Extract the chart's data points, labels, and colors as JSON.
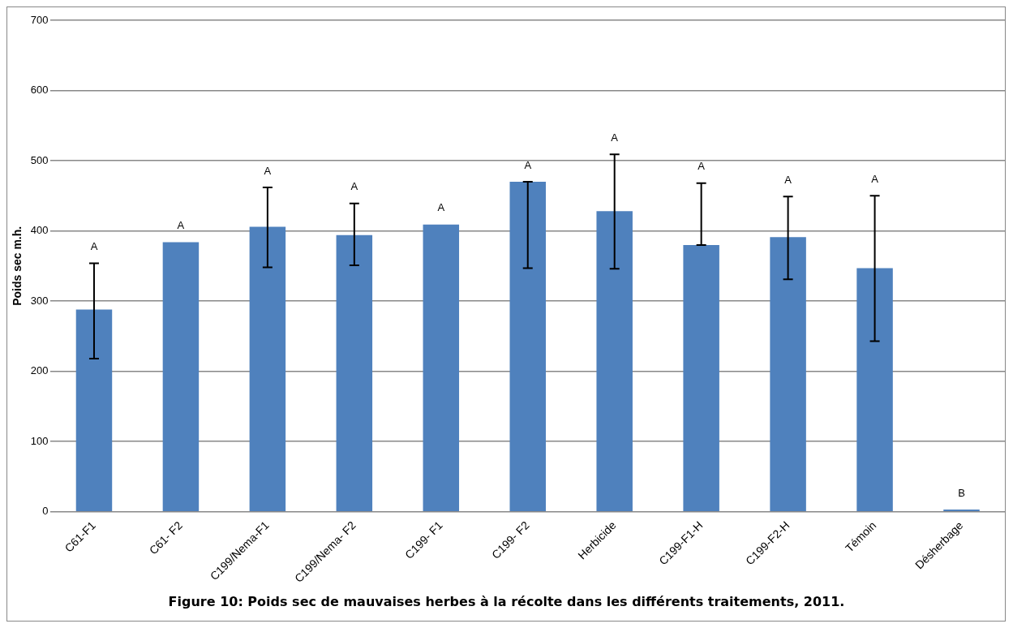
{
  "chart_data": {
    "type": "bar",
    "ylabel": "Poids sec m.h.",
    "categories": [
      "C61-F1",
      "C61- F2",
      "C199/Nema-F1",
      "C199/Nema- F2",
      "C199- F1",
      "C199- F2",
      "Herbicide",
      "C199-F1-H",
      "C199-F2-H",
      "Témoin",
      "Désherbage"
    ],
    "values": [
      288,
      384,
      406,
      394,
      409,
      470,
      428,
      380,
      391,
      347,
      3
    ],
    "errors": [
      [
        218,
        354
      ],
      null,
      [
        348,
        462
      ],
      [
        351,
        439
      ],
      null,
      [
        347,
        470
      ],
      [
        346,
        509
      ],
      [
        380,
        468
      ],
      [
        331,
        449
      ],
      [
        243,
        450
      ],
      null
    ],
    "color": "#4f81bd",
    "ylim": [
      0,
      700
    ],
    "yticks": [
      0,
      100,
      200,
      300,
      400,
      500,
      600,
      700
    ],
    "grid": "y",
    "annotations": [
      "A",
      "A",
      "A",
      "A",
      "A",
      "A",
      "A",
      "A",
      "A",
      "A",
      "B",
      "Figure 10: Poids sec de mauvaises herbes à la récolte dans les différents traitements, 2011."
    ]
  }
}
